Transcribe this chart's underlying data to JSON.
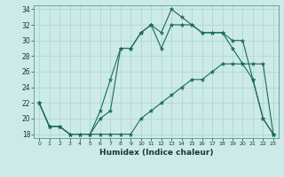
{
  "xlabel": "Humidex (Indice chaleur)",
  "ylabel": "",
  "background_color": "#cceae8",
  "line_color": "#1a6b5a",
  "grid_color": "#aad4cf",
  "xlim": [
    -0.5,
    23.5
  ],
  "ylim": [
    17.5,
    34.5
  ],
  "xticks": [
    0,
    1,
    2,
    3,
    4,
    5,
    6,
    7,
    8,
    9,
    10,
    11,
    12,
    13,
    14,
    15,
    16,
    17,
    18,
    19,
    20,
    21,
    22,
    23
  ],
  "yticks": [
    18,
    20,
    22,
    24,
    26,
    28,
    30,
    32,
    34
  ],
  "line1_x": [
    0,
    1,
    2,
    3,
    4,
    5,
    6,
    7,
    8,
    9,
    10,
    11,
    12,
    13,
    14,
    15,
    16,
    17,
    18,
    19,
    20,
    21,
    22,
    23
  ],
  "line1_y": [
    22,
    19,
    19,
    18,
    18,
    18,
    21,
    25,
    29,
    29,
    31,
    32,
    31,
    34,
    33,
    32,
    31,
    31,
    31,
    30,
    30,
    25,
    20,
    18
  ],
  "line2_x": [
    0,
    1,
    2,
    3,
    4,
    5,
    6,
    7,
    8,
    9,
    10,
    11,
    12,
    13,
    14,
    15,
    16,
    17,
    18,
    19,
    20,
    21,
    22,
    23
  ],
  "line2_y": [
    22,
    19,
    19,
    18,
    18,
    18,
    20,
    21,
    29,
    29,
    31,
    32,
    29,
    32,
    32,
    32,
    31,
    31,
    31,
    29,
    27,
    25,
    20,
    18
  ],
  "line3_x": [
    0,
    1,
    2,
    3,
    4,
    5,
    6,
    7,
    8,
    9,
    10,
    11,
    12,
    13,
    14,
    15,
    16,
    17,
    18,
    19,
    20,
    21,
    22,
    23
  ],
  "line3_y": [
    22,
    19,
    19,
    18,
    18,
    18,
    18,
    18,
    18,
    18,
    20,
    21,
    22,
    23,
    24,
    25,
    25,
    26,
    27,
    27,
    27,
    27,
    27,
    18
  ]
}
